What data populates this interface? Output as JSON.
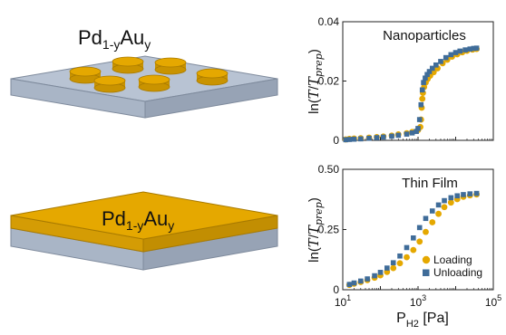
{
  "illustrations": {
    "top_label": {
      "base": "Pd",
      "sub1": "1-y",
      "mid": "Au",
      "sub2": "y"
    },
    "bottom_label": {
      "base": "Pd",
      "sub1": "1-y",
      "mid": "Au",
      "sub2": "y"
    },
    "colors": {
      "gold": "#E5A800",
      "gold_dark": "#B88700",
      "substrate": "#B8C3D3",
      "substrate_dark": "#8F9BAE"
    }
  },
  "chart_data": [
    {
      "type": "scatter",
      "title": "Nanoparticles",
      "ylabel": {
        "prefix": "ln(",
        "num": "T",
        "den": "T",
        "den_sub": "prep",
        "suffix": ")"
      },
      "x_scale": "log",
      "xlim": [
        10,
        100000
      ],
      "ylim": [
        0,
        0.04
      ],
      "yticks": [
        {
          "value": 0,
          "label": "0"
        },
        {
          "value": 0.02,
          "label": "0.02"
        },
        {
          "value": 0.04,
          "label": "0.04"
        }
      ],
      "legend": null,
      "series": [
        {
          "name": "Loading",
          "color": "#E5A800",
          "marker": "circle",
          "x": [
            12,
            15,
            20,
            30,
            50,
            80,
            120,
            200,
            300,
            500,
            700,
            1000,
            1150,
            1200,
            1250,
            1300,
            1350,
            1450,
            1600,
            1800,
            2100,
            2600,
            3300,
            4500,
            6000,
            8000,
            11000,
            15000,
            20000,
            28000,
            36000
          ],
          "y": [
            0.0003,
            0.0005,
            0.0006,
            0.0007,
            0.0009,
            0.0011,
            0.0013,
            0.0016,
            0.002,
            0.0024,
            0.0028,
            0.0035,
            0.0045,
            0.007,
            0.011,
            0.014,
            0.016,
            0.018,
            0.0195,
            0.0207,
            0.0218,
            0.023,
            0.0243,
            0.026,
            0.0272,
            0.0282,
            0.029,
            0.0297,
            0.0302,
            0.0306,
            0.0308
          ]
        },
        {
          "name": "Unloading",
          "color": "#3F6C99",
          "marker": "square",
          "x": [
            12,
            15,
            20,
            30,
            50,
            80,
            120,
            200,
            300,
            500,
            700,
            900,
            1000,
            1100,
            1200,
            1300,
            1400,
            1550,
            1750,
            2000,
            2400,
            3000,
            4000,
            5500,
            7500,
            10000,
            13000,
            18000,
            24000,
            30000,
            36000
          ],
          "y": [
            0.0002,
            0.0003,
            0.0004,
            0.0005,
            0.0007,
            0.0009,
            0.0011,
            0.0014,
            0.0017,
            0.0021,
            0.0025,
            0.003,
            0.004,
            0.007,
            0.012,
            0.017,
            0.0195,
            0.021,
            0.0222,
            0.0232,
            0.0243,
            0.0254,
            0.0266,
            0.0279,
            0.0289,
            0.0296,
            0.0301,
            0.0305,
            0.0308,
            0.031,
            0.0311
          ]
        }
      ]
    },
    {
      "type": "scatter",
      "title": "Thin Film",
      "ylabel": {
        "prefix": "ln(",
        "num": "T",
        "den": "T",
        "den_sub": "prep",
        "suffix": ")"
      },
      "x_scale": "log",
      "xlim": [
        10,
        100000
      ],
      "ylim": [
        0,
        0.5
      ],
      "xticks": [
        {
          "value": 10,
          "base": "10",
          "exp": "1"
        },
        {
          "value": 1000,
          "base": "10",
          "exp": "3"
        },
        {
          "value": 100000,
          "base": "10",
          "exp": "5"
        }
      ],
      "yticks": [
        {
          "value": 0,
          "label": "0"
        },
        {
          "value": 0.25,
          "label": "0.25"
        },
        {
          "value": 0.5,
          "label": "0.50"
        }
      ],
      "xlabel": {
        "base": "P",
        "sub": "H2",
        "unit": " [Pa]"
      },
      "legend": "lower-right",
      "series": [
        {
          "name": "Loading",
          "color": "#E5A800",
          "marker": "circle",
          "x": [
            15,
            20,
            30,
            45,
            70,
            100,
            150,
            220,
            330,
            500,
            750,
            1100,
            1600,
            2400,
            3500,
            5000,
            7500,
            11000,
            16000,
            24000,
            36000
          ],
          "y": [
            0.02,
            0.025,
            0.032,
            0.04,
            0.05,
            0.06,
            0.074,
            0.09,
            0.11,
            0.135,
            0.165,
            0.2,
            0.24,
            0.28,
            0.315,
            0.343,
            0.362,
            0.376,
            0.386,
            0.392,
            0.396
          ]
        },
        {
          "name": "Unloading",
          "color": "#3F6C99",
          "marker": "square",
          "x": [
            15,
            20,
            30,
            45,
            70,
            100,
            150,
            220,
            330,
            500,
            750,
            1100,
            1600,
            2400,
            3500,
            5000,
            7500,
            11000,
            16000,
            24000,
            36000
          ],
          "y": [
            0.022,
            0.028,
            0.036,
            0.045,
            0.058,
            0.072,
            0.09,
            0.112,
            0.14,
            0.175,
            0.215,
            0.258,
            0.296,
            0.327,
            0.352,
            0.37,
            0.382,
            0.39,
            0.395,
            0.398,
            0.4
          ]
        }
      ]
    }
  ]
}
